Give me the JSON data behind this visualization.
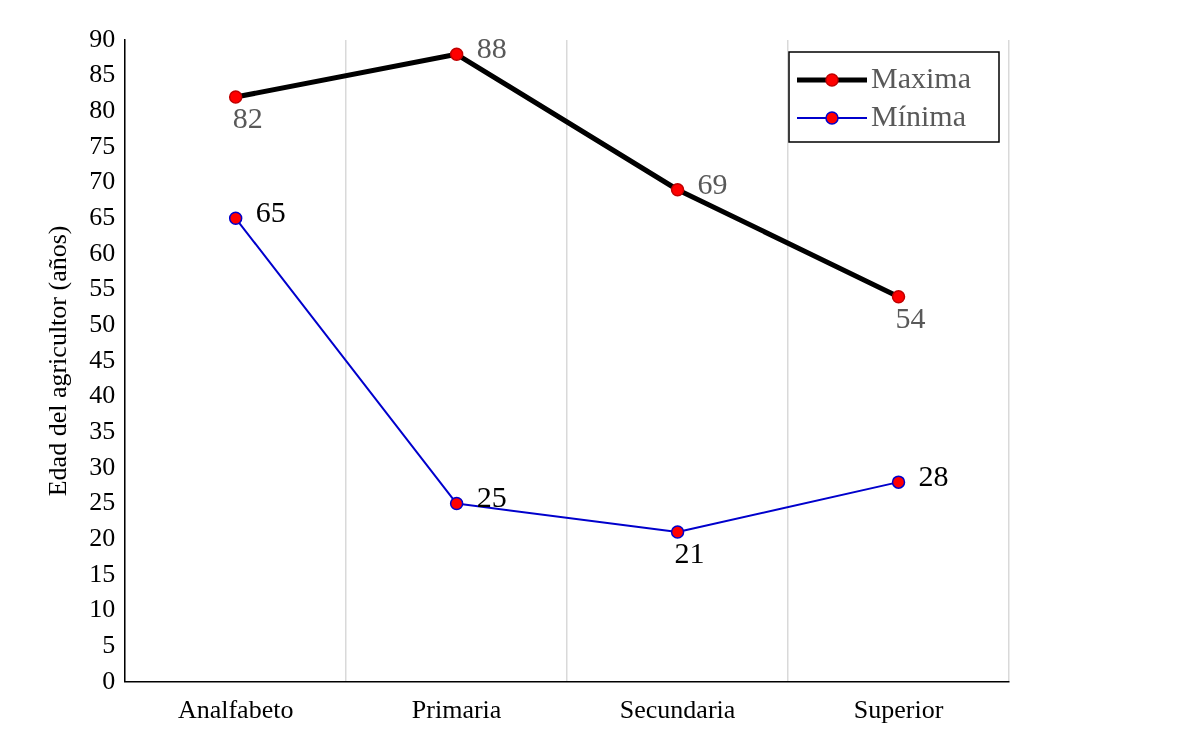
{
  "chart_data": {
    "type": "line",
    "ylabel": "Edad del agricultor (años)",
    "categories": [
      "Analfabeto",
      "Primaria",
      "Secundaria",
      "Superior"
    ],
    "series": [
      {
        "name": "Maxima",
        "color": "#000000",
        "values": [
          82,
          88,
          69,
          54
        ]
      },
      {
        "name": "Mínima",
        "color": "#0000cc",
        "values": [
          65,
          25,
          21,
          28
        ]
      }
    ],
    "ylim": [
      0,
      90
    ],
    "yticks": [
      0,
      5,
      10,
      15,
      20,
      25,
      30,
      35,
      40,
      45,
      50,
      55,
      60,
      65,
      70,
      75,
      80,
      85,
      90
    ],
    "grid": "x",
    "legend": "top right",
    "marker": "circle",
    "line_style": "solid",
    "data_labels": true
  }
}
